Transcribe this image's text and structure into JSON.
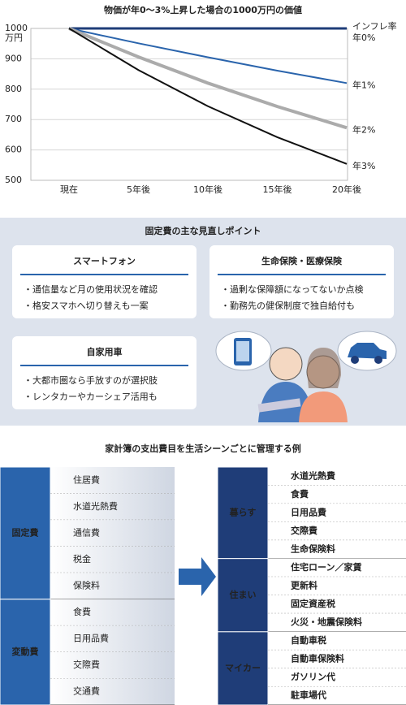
{
  "chart_data": {
    "type": "line",
    "title": "物価が年0～3%上昇した場合の1000万円の価値",
    "y_unit": "万円",
    "annotation": "インフレ率",
    "categories": [
      "現在",
      "5年後",
      "10年後",
      "15年後",
      "20年後"
    ],
    "series": [
      {
        "name": "年0%",
        "color": "#1f3d78",
        "values": [
          1000,
          1000,
          1000,
          1000,
          1000
        ]
      },
      {
        "name": "年1%",
        "color": "#2a64ac",
        "values": [
          1000,
          951,
          905,
          861,
          820
        ]
      },
      {
        "name": "年2%",
        "color": "#ababab",
        "values": [
          1000,
          906,
          820,
          743,
          673
        ]
      },
      {
        "name": "年3%",
        "color": "#111111",
        "values": [
          1000,
          863,
          744,
          642,
          554
        ]
      }
    ],
    "ylim": [
      500,
      1000
    ],
    "yticks": [
      500,
      600,
      700,
      800,
      900,
      1000
    ],
    "grid": true
  },
  "review": {
    "title": "固定費の主な見直しポイント",
    "cards": [
      {
        "title": "スマートフォン",
        "items": [
          "・通信量など月の使用状況を確認",
          "・格安スマホへ切り替えも一案"
        ]
      },
      {
        "title": "生命保険・医療保険",
        "items": [
          "・過剰な保障額になってないか点検",
          "・勤務先の健保制度で独自給付も"
        ]
      },
      {
        "title": "自家用車",
        "items": [
          "・大都市圏なら手放すのが選択肢",
          "・レンタカーやカーシェア活用も"
        ]
      }
    ]
  },
  "ledger": {
    "title": "家計簿の支出費目を生活シーンごとに管理する例",
    "left": [
      {
        "label": "固定費",
        "items": [
          "住居費",
          "水道光熱費",
          "通信費",
          "税金",
          "保険料"
        ]
      },
      {
        "label": "変動費",
        "items": [
          "食費",
          "日用品費",
          "交際費",
          "交通費"
        ]
      }
    ],
    "right": [
      {
        "label": "暮らす",
        "items": [
          "水道光熱費",
          "食費",
          "日用品費",
          "交際費",
          "生命保険料"
        ]
      },
      {
        "label": "住まい",
        "items": [
          "住宅ローン／家賃",
          "更新料",
          "固定資産税",
          "火災・地震保険料"
        ]
      },
      {
        "label": "マイカー",
        "items": [
          "自動車税",
          "自動車保険料",
          "ガソリン代",
          "駐車場代"
        ]
      }
    ]
  }
}
